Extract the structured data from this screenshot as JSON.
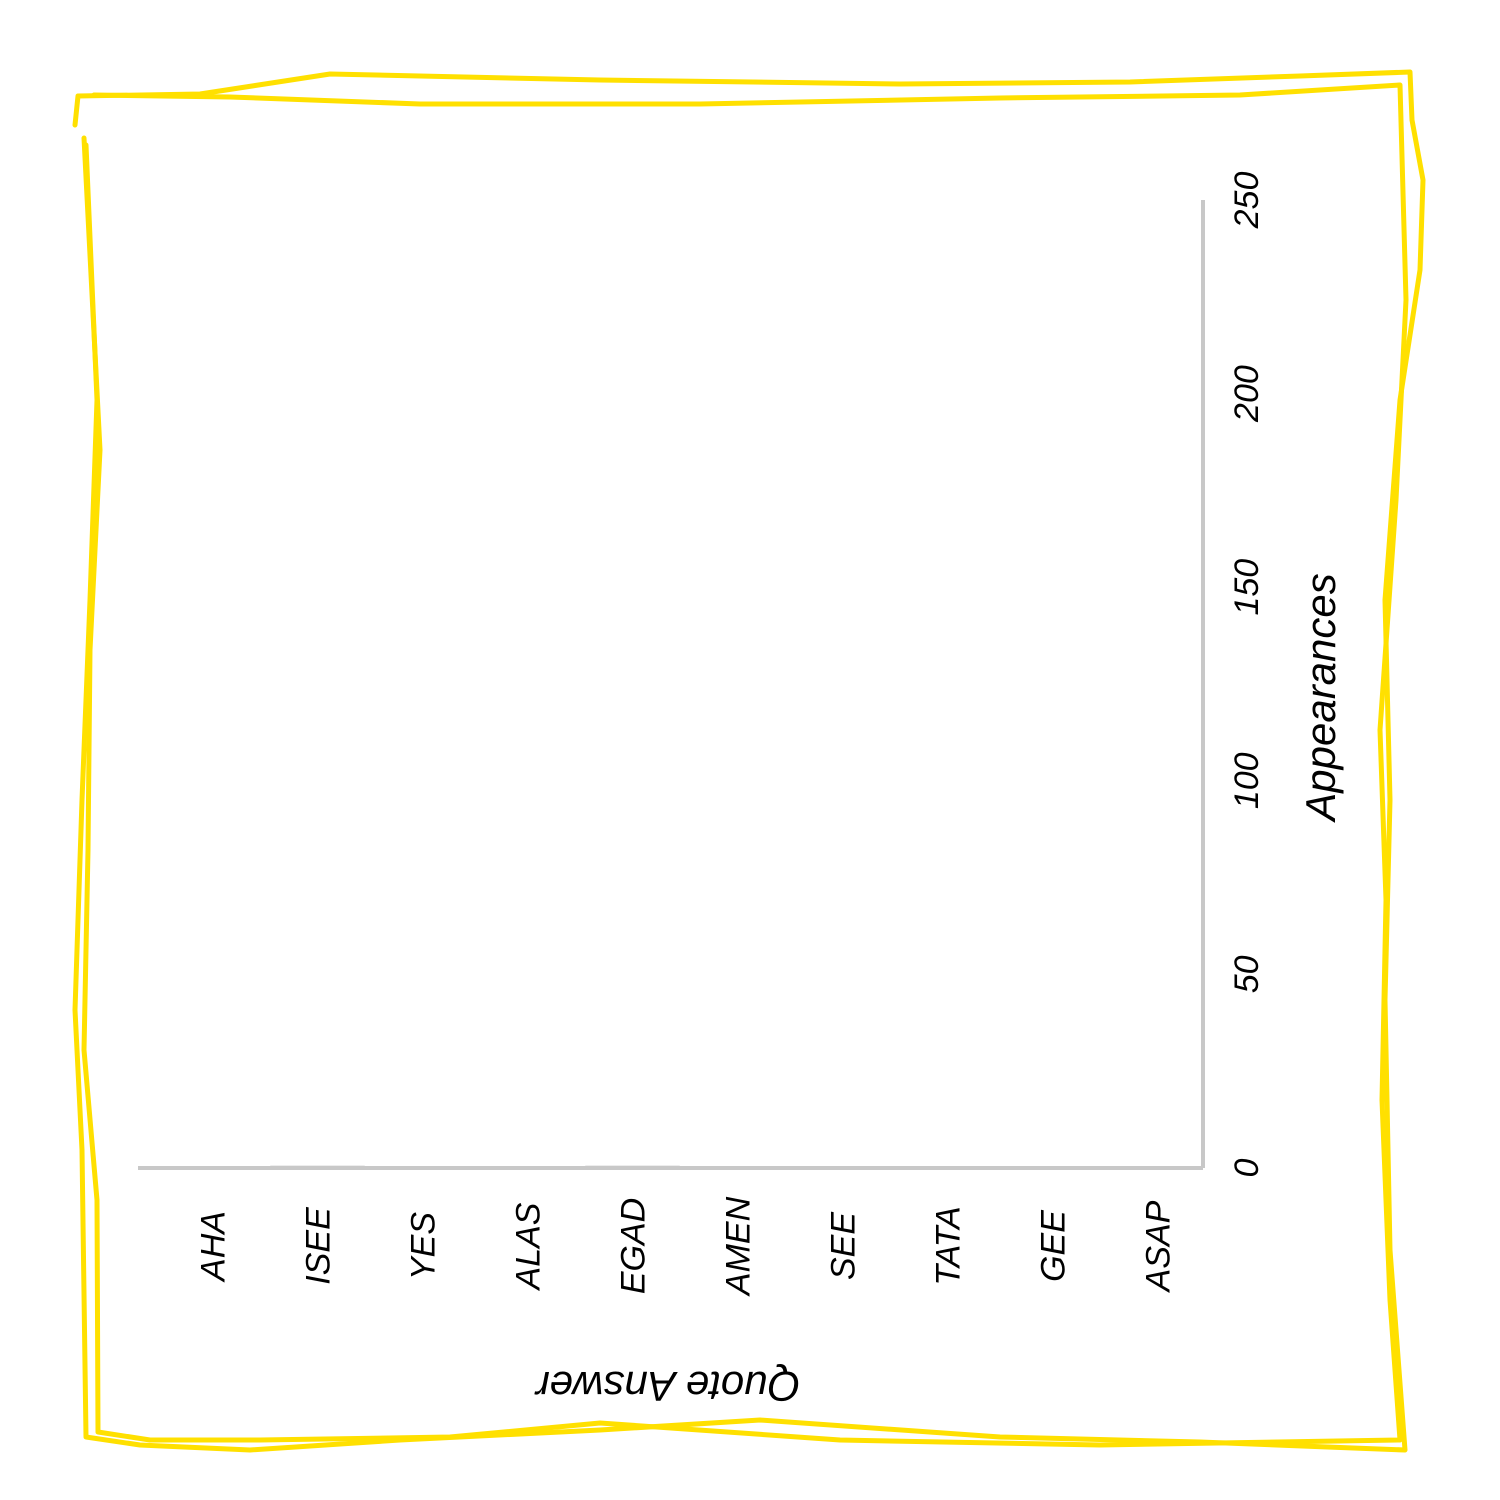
{
  "colors": {
    "frame": "#FFE000",
    "axis": "#c8c8c8",
    "bar": "#c8c8c8",
    "text": "#000000"
  },
  "chart_data": {
    "type": "bar",
    "orientation": "vertical-rotated",
    "categories": [
      "AHA",
      "ISEE",
      "YES",
      "ALAS",
      "EGAD",
      "AMEN",
      "SEE",
      "TATA",
      "GEE",
      "ASAP"
    ],
    "values": [
      0.3,
      0.6,
      0.2,
      0.3,
      0.6,
      0.4,
      0.3,
      0.3,
      0.3,
      0.3
    ],
    "xlabel": "Quote Answer",
    "ylabel": "Appearances",
    "ylim": [
      0,
      250
    ],
    "yticks": [
      "0",
      "50",
      "100",
      "150",
      "200",
      "250"
    ],
    "grid": false,
    "legend": "none"
  }
}
